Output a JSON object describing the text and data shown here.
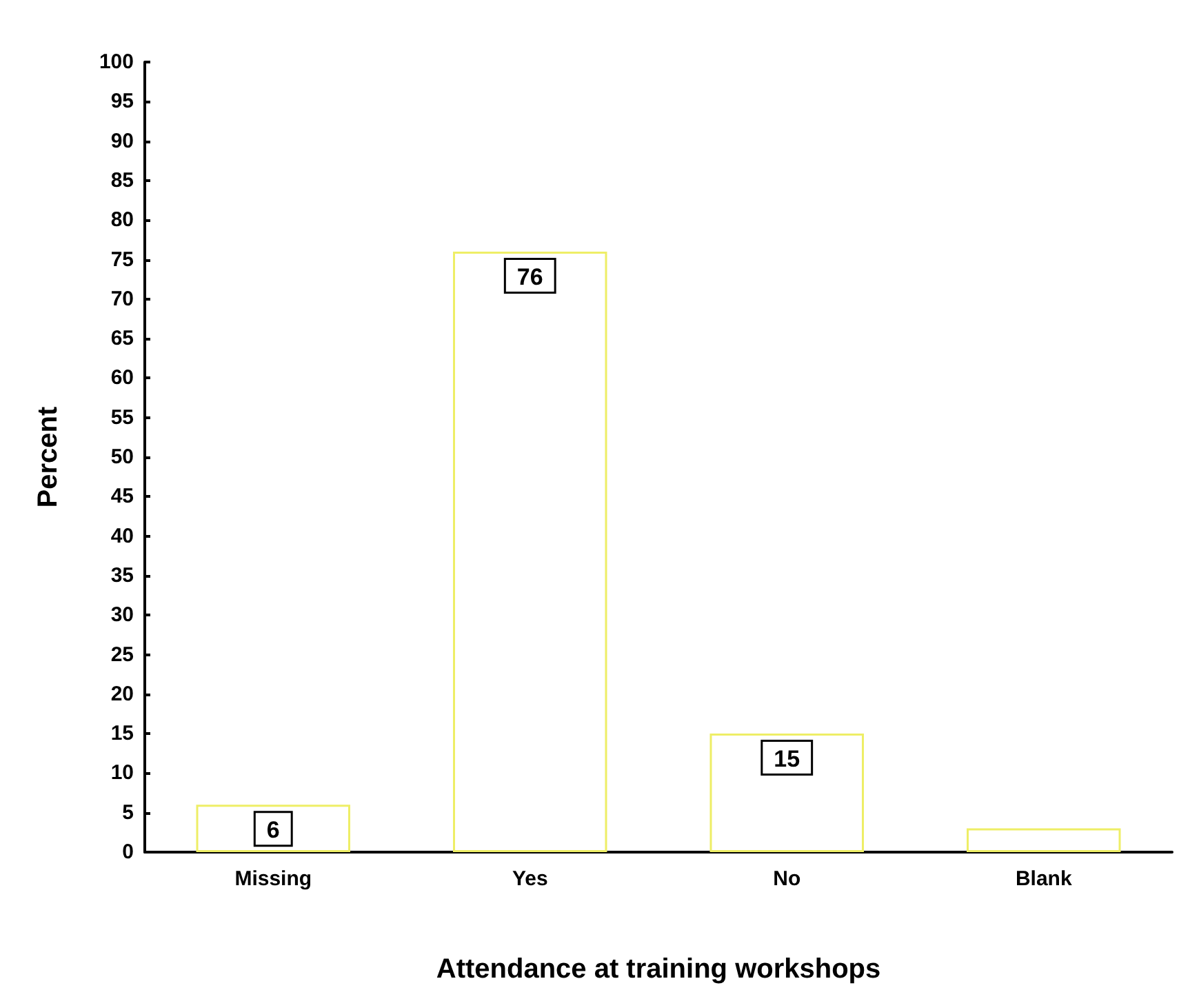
{
  "chart_data": {
    "type": "bar",
    "xlabel": "Attendance at training workshops",
    "ylabel": "Percent",
    "categories": [
      "Missing",
      "Yes",
      "No",
      "Blank"
    ],
    "values": [
      6,
      76,
      15,
      3
    ],
    "value_labels": [
      "6",
      "76",
      "15",
      null
    ],
    "color": "#ffffff",
    "ylim": [
      0,
      100
    ],
    "yticks": [
      0,
      5,
      10,
      15,
      20,
      25,
      30,
      35,
      40,
      45,
      50,
      55,
      60,
      65,
      70,
      75,
      80,
      85,
      90,
      95,
      100
    ],
    "grid": false
  }
}
